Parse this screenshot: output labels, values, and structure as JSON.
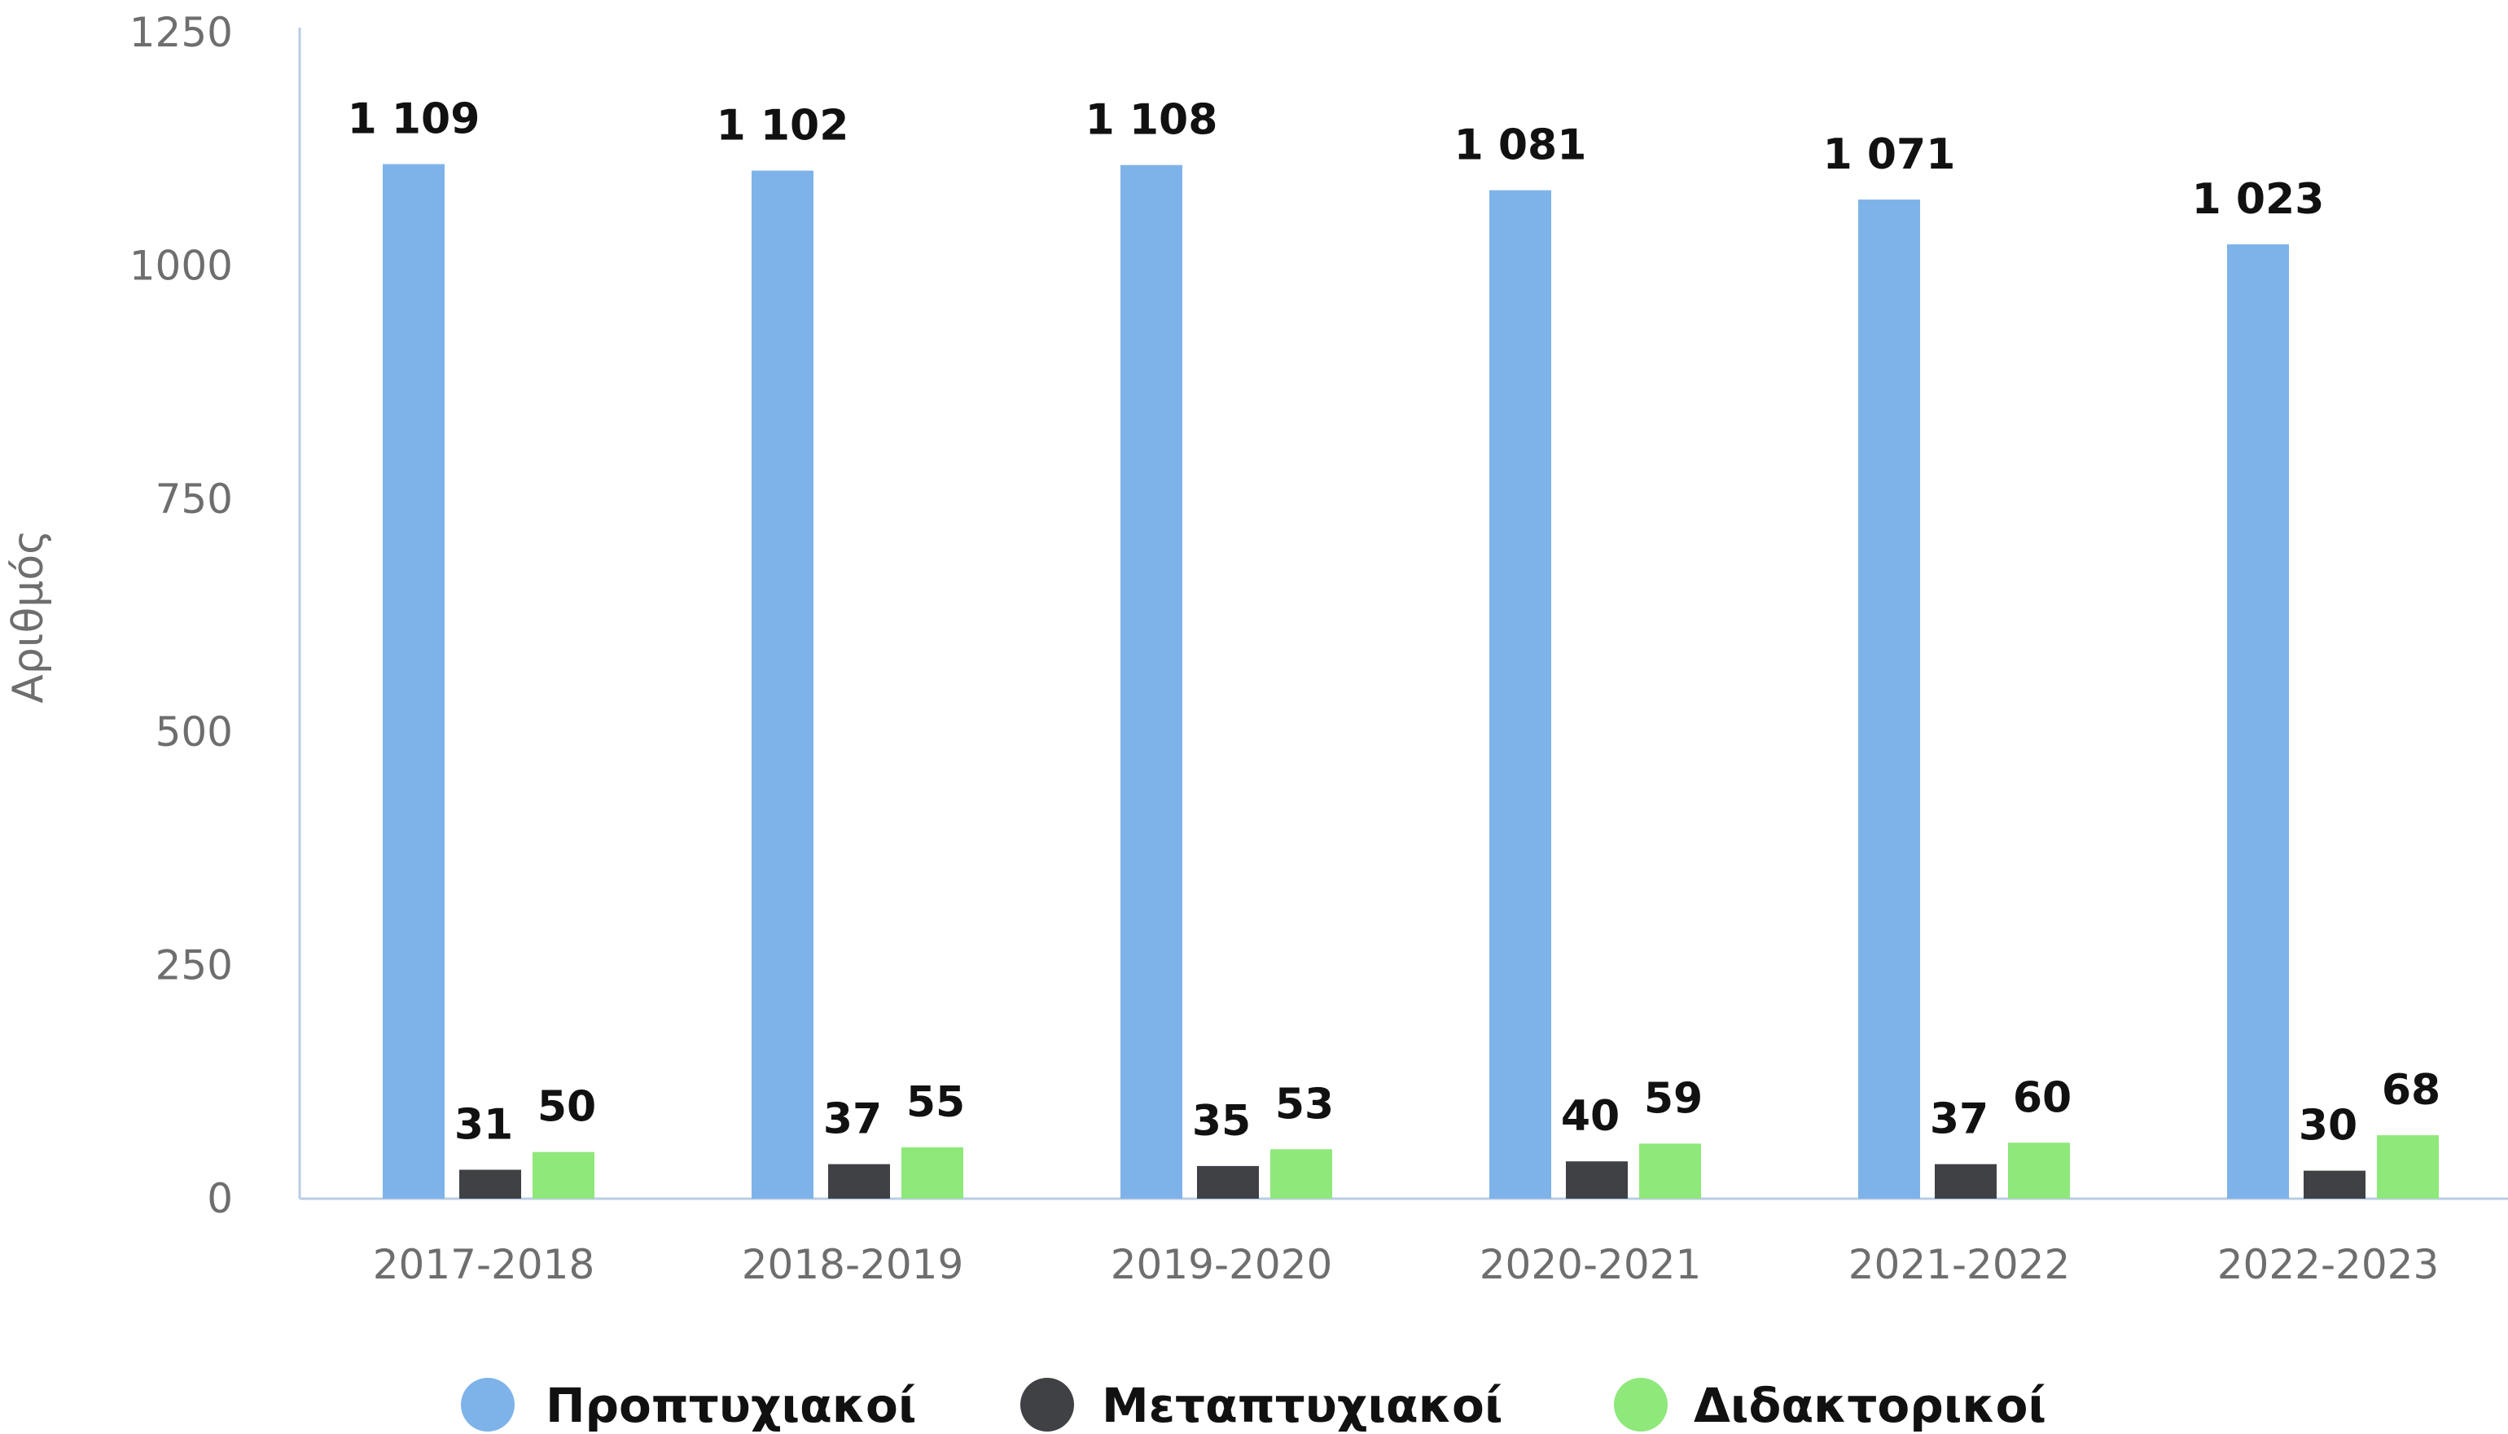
{
  "chart_data": {
    "type": "bar",
    "title": "",
    "xlabel": "",
    "ylabel": "Αριθμός",
    "ylim": [
      0,
      1250
    ],
    "yticks": [
      0,
      250,
      500,
      750,
      1000,
      1250
    ],
    "ytick_labels": [
      "0",
      "250",
      "500",
      "750",
      "1000",
      "1250"
    ],
    "grid": false,
    "legend_position": "bottom",
    "categories": [
      "2017-2018",
      "2018-2019",
      "2019-2020",
      "2020-2021",
      "2021-2022",
      "2022-2023"
    ],
    "series": [
      {
        "name": "Προπτυχιακοί",
        "color": "#7eb3e9",
        "values": [
          1109,
          1102,
          1108,
          1081,
          1071,
          1023
        ],
        "labels": [
          "1 109",
          "1 102",
          "1 108",
          "1 081",
          "1 071",
          "1 023"
        ]
      },
      {
        "name": "Μεταπτυχιακοί",
        "color": "#3f4145",
        "values": [
          31,
          37,
          35,
          40,
          37,
          30
        ],
        "labels": [
          "31",
          "37",
          "35",
          "40",
          "37",
          "30"
        ]
      },
      {
        "name": "Διδακτορικοί",
        "color": "#8ee87a",
        "values": [
          50,
          55,
          53,
          59,
          60,
          68
        ],
        "labels": [
          "50",
          "55",
          "53",
          "59",
          "60",
          "68"
        ]
      }
    ]
  }
}
